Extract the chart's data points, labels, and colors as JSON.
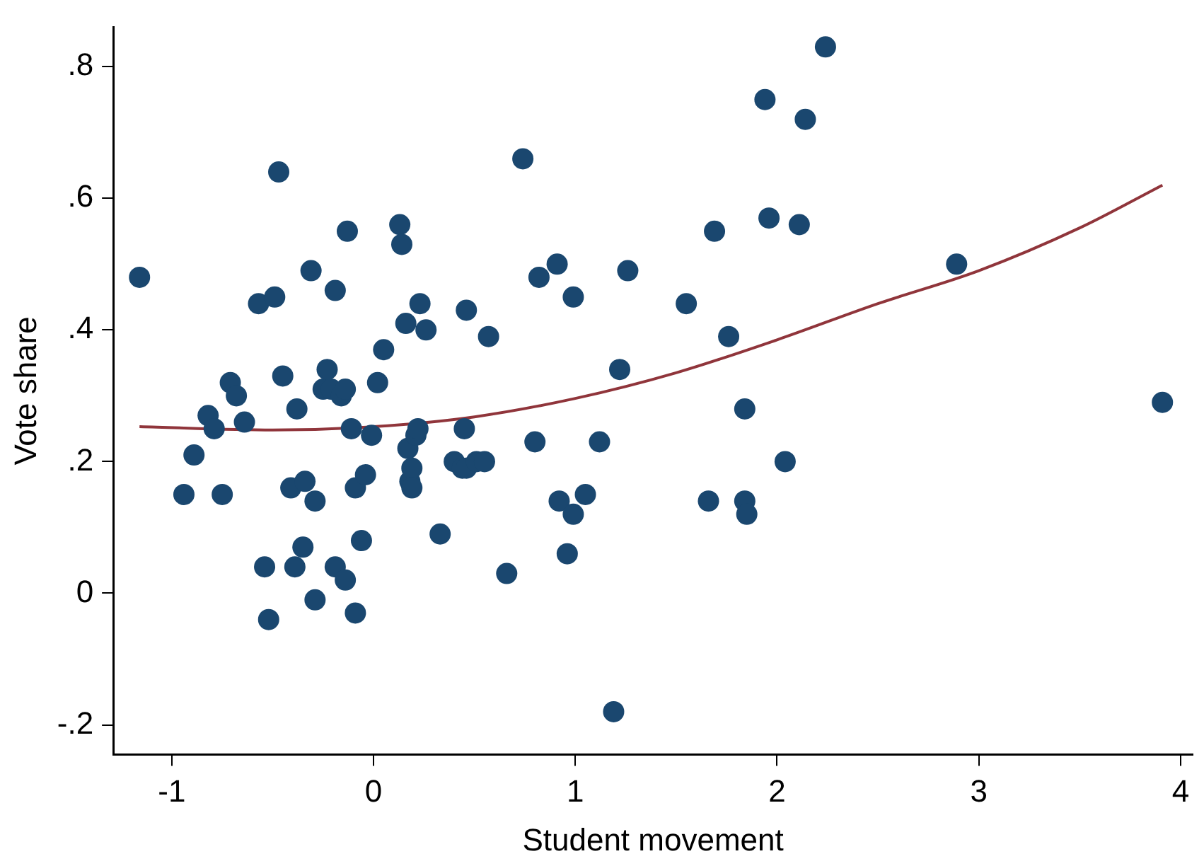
{
  "chart_data": {
    "type": "scatter",
    "xlabel": "Student movement",
    "ylabel": "Vote share",
    "xlim": [
      -1.29,
      4.06
    ],
    "ylim": [
      -0.245,
      0.86
    ],
    "xticks": [
      -1,
      0,
      1,
      2,
      3,
      4
    ],
    "yticks": [
      {
        "value": -0.2,
        "label": "-.2"
      },
      0,
      {
        "value": 0.2,
        "label": ".2"
      },
      {
        "value": 0.4,
        "label": ".4"
      },
      {
        "value": 0.6,
        "label": ".6"
      },
      {
        "value": 0.8,
        "label": ".8"
      }
    ],
    "grid": false,
    "legend": false,
    "marker": "circle",
    "series": [
      {
        "color": "#1a476f",
        "x": [
          -1.16,
          -0.94,
          -0.89,
          -0.82,
          -0.79,
          -0.75,
          -0.71,
          -0.68,
          -0.64,
          -0.57,
          -0.54,
          -0.52,
          -0.49,
          -0.47,
          -0.45,
          -0.41,
          -0.39,
          -0.38,
          -0.35,
          -0.34,
          -0.31,
          -0.29,
          -0.29,
          -0.25,
          -0.23,
          -0.21,
          -0.19,
          -0.19,
          -0.16,
          -0.14,
          -0.14,
          -0.13,
          -0.11,
          -0.09,
          -0.09,
          -0.06,
          -0.04,
          -0.01,
          0.02,
          0.05,
          0.13,
          0.14,
          0.16,
          0.17,
          0.18,
          0.19,
          0.19,
          0.21,
          0.22,
          0.23,
          0.26,
          0.33,
          0.4,
          0.44,
          0.46,
          0.45,
          0.46,
          0.51,
          0.55,
          0.57,
          0.66,
          0.74,
          0.8,
          0.82,
          0.91,
          0.92,
          0.96,
          0.99,
          0.99,
          1.05,
          1.12,
          1.19,
          1.22,
          1.26,
          1.55,
          1.66,
          1.69,
          1.76,
          1.84,
          1.84,
          1.85,
          1.94,
          1.96,
          2.04,
          2.11,
          2.14,
          2.24,
          2.89,
          3.91
        ],
        "values": [
          0.48,
          0.15,
          0.21,
          0.27,
          0.25,
          0.15,
          0.32,
          0.3,
          0.26,
          0.44,
          0.04,
          -0.04,
          0.45,
          0.64,
          0.33,
          0.16,
          0.04,
          0.28,
          0.07,
          0.17,
          0.49,
          0.14,
          -0.01,
          0.31,
          0.34,
          0.31,
          0.46,
          0.04,
          0.3,
          0.02,
          0.31,
          0.55,
          0.25,
          0.16,
          -0.03,
          0.08,
          0.18,
          0.24,
          0.32,
          0.37,
          0.56,
          0.53,
          0.41,
          0.22,
          0.17,
          0.19,
          0.16,
          0.24,
          0.25,
          0.44,
          0.4,
          0.09,
          0.2,
          0.19,
          0.43,
          0.25,
          0.19,
          0.2,
          0.2,
          0.39,
          0.03,
          0.66,
          0.23,
          0.48,
          0.5,
          0.14,
          0.06,
          0.12,
          0.45,
          0.15,
          0.23,
          -0.18,
          0.34,
          0.49,
          0.44,
          0.14,
          0.55,
          0.39,
          0.14,
          0.28,
          0.12,
          0.75,
          0.57,
          0.2,
          0.56,
          0.72,
          0.83,
          0.5,
          0.29
        ]
      },
      {
        "type": "line",
        "color": "#90353b",
        "marker": "none",
        "x": [
          -1.16,
          -0.5,
          0,
          0.5,
          1,
          1.5,
          2,
          2.5,
          3,
          3.5,
          3.91
        ],
        "values": [
          0.253,
          0.248,
          0.253,
          0.268,
          0.296,
          0.335,
          0.385,
          0.44,
          0.49,
          0.555,
          0.62
        ]
      }
    ]
  }
}
